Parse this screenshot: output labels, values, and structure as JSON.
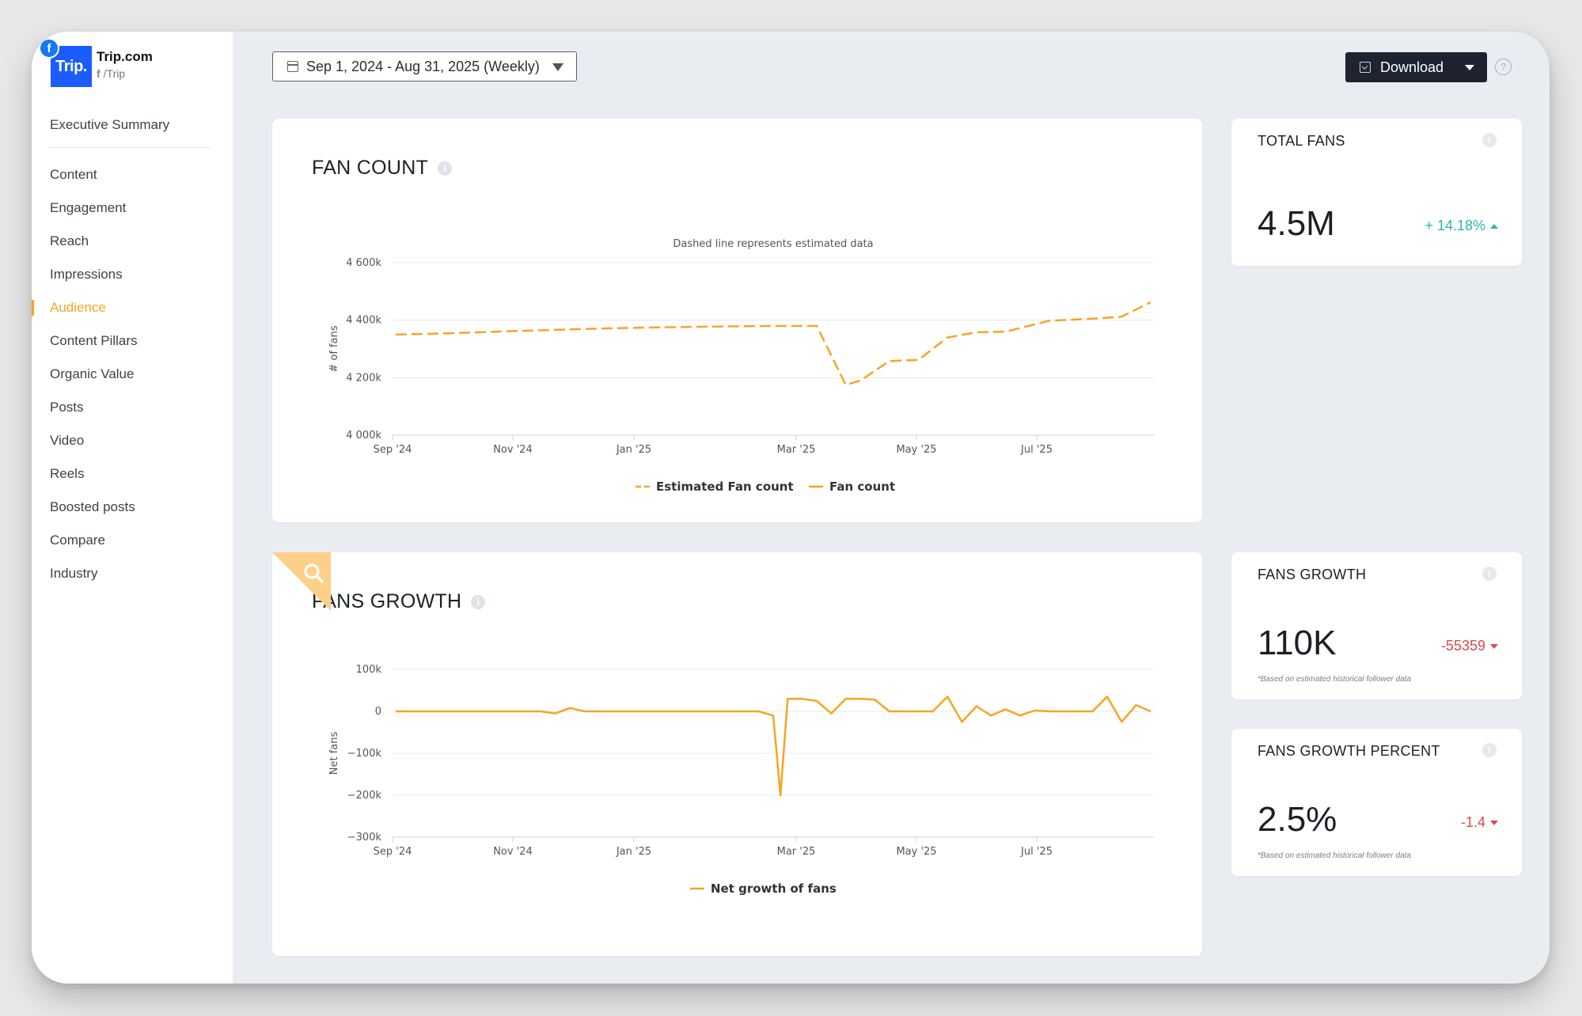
{
  "brand": {
    "name": "Trip.com",
    "handle": "/Trip",
    "logo_text": "Trip.",
    "network_glyph": "f",
    "handle_glyph": "f"
  },
  "sidebar": {
    "summary_label": "Executive Summary",
    "items": [
      {
        "label": "Content"
      },
      {
        "label": "Engagement"
      },
      {
        "label": "Reach"
      },
      {
        "label": "Impressions"
      },
      {
        "label": "Audience"
      },
      {
        "label": "Content Pillars"
      },
      {
        "label": "Organic Value"
      },
      {
        "label": "Posts"
      },
      {
        "label": "Video"
      },
      {
        "label": "Reels"
      },
      {
        "label": "Boosted posts"
      },
      {
        "label": "Compare"
      },
      {
        "label": "Industry"
      }
    ],
    "active_label": "Audience"
  },
  "toolbar": {
    "date_range": "Sep 1, 2024 - Aug 31, 2025 (Weekly)",
    "download_label": "Download",
    "help_glyph": "?"
  },
  "info_glyph": "i",
  "colors": {
    "accent": "#f5a623",
    "line": "#f5a623",
    "positive": "#2fb6a6",
    "negative": "#e0474c",
    "brand_blue": "#1a5cff"
  },
  "fan_count_card": {
    "title": "FAN COUNT",
    "subtitle": "Dashed line represents estimated data"
  },
  "fans_growth_card": {
    "title": "FANS GROWTH"
  },
  "metrics": {
    "total_fans": {
      "title": "TOTAL FANS",
      "value": "4.5M",
      "change": "+ 14.18%"
    },
    "fans_growth": {
      "title": "FANS GROWTH",
      "value": "110K",
      "change": "-55359",
      "note": "*Based on estimated historical follower data"
    },
    "fans_growth_percent": {
      "title": "FANS GROWTH PERCENT",
      "value": "2.5%",
      "change": "-1.4",
      "note": "*Based on estimated historical follower data"
    }
  },
  "chart_data": [
    {
      "type": "line",
      "title": "FAN COUNT",
      "subtitle": "Dashed line represents estimated data",
      "xlabel": "",
      "ylabel": "# of fans",
      "ylim": [
        4000,
        4600
      ],
      "y_ticks": [
        4000,
        4200,
        4400,
        4600
      ],
      "y_tick_labels": [
        "4 000k",
        "4 200k",
        "4 400k",
        "4 600k"
      ],
      "x_tick_labels": [
        "Sep '24",
        "Nov '24",
        "Jan '25",
        "Mar '25",
        "May '25",
        "Jul '25"
      ],
      "x_range": [
        0,
        52
      ],
      "series": [
        {
          "name": "Estimated Fan count",
          "style": "dashed",
          "x": [
            0,
            4,
            8,
            12,
            15,
            18,
            22,
            26,
            29,
            31,
            32,
            34,
            36,
            38,
            40,
            42,
            45,
            48,
            50,
            51.5,
            52
          ],
          "values": [
            4350,
            4355,
            4362,
            4368,
            4372,
            4375,
            4378,
            4380,
            4380,
            4175,
            4190,
            4258,
            4262,
            4340,
            4358,
            4360,
            4398,
            4405,
            4412,
            4450,
            4462
          ]
        },
        {
          "name": "Fan count",
          "style": "solid",
          "x": [],
          "values": []
        }
      ],
      "grid": true,
      "legend": "bottom-center"
    },
    {
      "type": "line",
      "title": "FANS GROWTH",
      "xlabel": "",
      "ylabel": "Net fans",
      "ylim": [
        -300,
        100
      ],
      "y_ticks": [
        -300,
        -200,
        -100,
        0,
        100
      ],
      "y_tick_labels": [
        "−300k",
        "−200k",
        "−100k",
        "0",
        "100k"
      ],
      "x_tick_labels": [
        "Sep '24",
        "Nov '24",
        "Jan '25",
        "Mar '25",
        "May '25",
        "Jul '25"
      ],
      "x_range": [
        0,
        52
      ],
      "series": [
        {
          "name": "Net growth of fans",
          "style": "solid",
          "x": [
            0,
            5,
            10,
            11,
            12,
            13,
            17,
            21,
            22,
            23,
            24,
            25,
            26,
            26.5,
            27,
            28,
            29,
            30,
            31,
            32,
            33,
            34,
            35,
            36,
            37,
            38,
            39,
            40,
            41,
            42,
            43,
            44,
            45,
            46,
            47,
            48,
            49,
            50,
            51,
            52
          ],
          "values": [
            0,
            0,
            0,
            -5,
            8,
            0,
            0,
            0,
            0,
            0,
            0,
            0,
            -10,
            -200,
            30,
            30,
            25,
            -5,
            30,
            30,
            28,
            0,
            0,
            0,
            0,
            35,
            -25,
            12,
            -10,
            5,
            -10,
            2,
            0,
            0,
            0,
            0,
            35,
            -25,
            15,
            0
          ]
        }
      ],
      "grid": true,
      "legend": "bottom-center"
    }
  ]
}
